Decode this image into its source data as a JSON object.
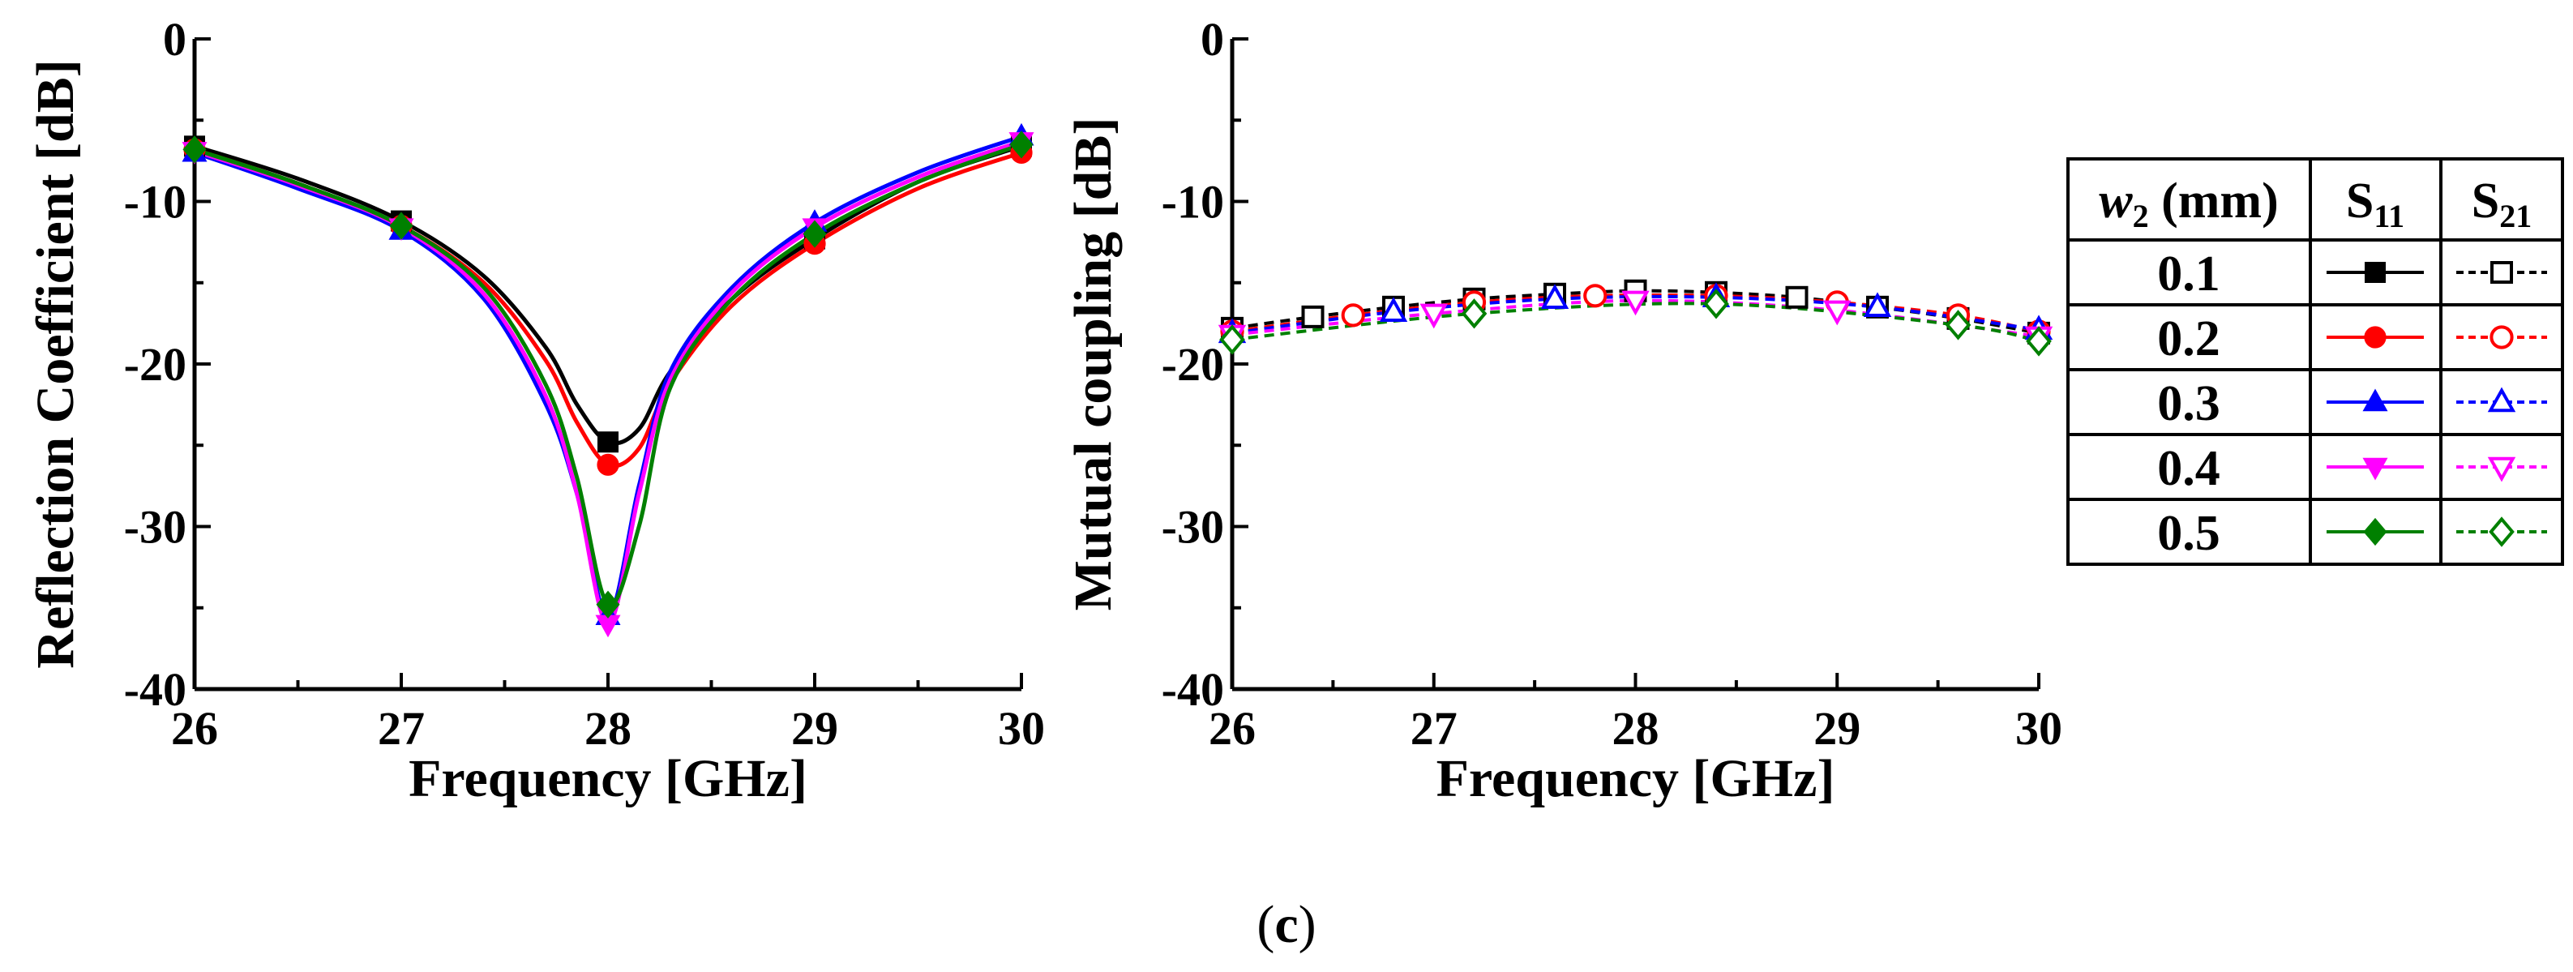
{
  "caption": {
    "open": "(",
    "letter": "c",
    "close": ")"
  },
  "colors": [
    "#000000",
    "#ff0000",
    "#0000ff",
    "#ff00ff",
    "#008000"
  ],
  "legend": {
    "header_param_italic": "w",
    "header_param_sub": "2",
    "header_param_unit": " (mm)",
    "header_s11_main": "S",
    "header_s11_sub": "11",
    "header_s21_main": "S",
    "header_s21_sub": "21",
    "rows": [
      "0.1",
      "0.2",
      "0.3",
      "0.4",
      "0.5"
    ],
    "markers": [
      "square",
      "circle",
      "triangle-up",
      "triangle-down",
      "diamond"
    ]
  },
  "chart_data": [
    {
      "type": "line",
      "title": "",
      "xlabel": "Frequency [GHz]",
      "ylabel": "Reflection Coefficient [dB]",
      "xlim": [
        26,
        30
      ],
      "ylim": [
        -40,
        0
      ],
      "xticks": [
        26,
        27,
        28,
        29,
        30
      ],
      "yticks": [
        0,
        -10,
        -20,
        -30,
        -40
      ],
      "x": [
        26,
        26.5,
        27,
        27.4,
        27.7,
        27.85,
        28.0,
        28.15,
        28.3,
        28.6,
        29,
        29.5,
        30
      ],
      "marker_x": [
        26,
        27,
        28,
        29,
        30
      ],
      "series": [
        {
          "name": "0.1",
          "values": [
            -6.6,
            -8.6,
            -11.2,
            -14.6,
            -19.0,
            -22.5,
            -24.8,
            -24.0,
            -20.5,
            -16.0,
            -12.3,
            -8.8,
            -6.6
          ]
        },
        {
          "name": "0.2",
          "values": [
            -6.8,
            -8.9,
            -11.5,
            -15.0,
            -19.8,
            -23.6,
            -26.2,
            -25.2,
            -21.2,
            -16.4,
            -12.6,
            -9.2,
            -7.0
          ]
        },
        {
          "name": "0.3",
          "values": [
            -7.0,
            -9.2,
            -11.8,
            -16.0,
            -22.5,
            -28.0,
            -35.5,
            -27.5,
            -20.5,
            -15.3,
            -11.3,
            -8.2,
            -6.0
          ]
        },
        {
          "name": "0.4",
          "values": [
            -6.9,
            -9.0,
            -11.6,
            -15.7,
            -22.0,
            -28.0,
            -36.0,
            -28.0,
            -21.0,
            -15.6,
            -11.6,
            -8.5,
            -6.3
          ]
        },
        {
          "name": "0.5",
          "values": [
            -6.8,
            -8.9,
            -11.5,
            -15.3,
            -21.3,
            -27.0,
            -34.8,
            -30.0,
            -21.5,
            -16.0,
            -12.0,
            -8.8,
            -6.5
          ]
        }
      ]
    },
    {
      "type": "line",
      "title": "",
      "xlabel": "Frequency [GHz]",
      "ylabel": "Mutual coupling [dB]",
      "xlim": [
        26,
        30
      ],
      "ylim": [
        -40,
        0
      ],
      "xticks": [
        26,
        27,
        28,
        29,
        30
      ],
      "yticks": [
        0,
        -10,
        -20,
        -30,
        -40
      ],
      "series": [
        {
          "name": "0.1",
          "x": [
            26,
            26.4,
            26.8,
            27.2,
            27.6,
            28.0,
            28.4,
            28.8,
            29.2,
            29.6,
            30
          ],
          "values": [
            -17.8,
            -17.1,
            -16.5,
            -16.0,
            -15.7,
            -15.5,
            -15.6,
            -15.9,
            -16.5,
            -17.2,
            -18.1
          ]
        },
        {
          "name": "0.2",
          "x": [
            26,
            26.6,
            27.2,
            27.8,
            28.4,
            29.0,
            29.6,
            30
          ],
          "values": [
            -18.0,
            -17.0,
            -16.2,
            -15.8,
            -15.8,
            -16.2,
            -17.0,
            -18.0
          ]
        },
        {
          "name": "0.3",
          "x": [
            26,
            26.8,
            27.6,
            28.4,
            29.2,
            30
          ],
          "values": [
            -18.1,
            -16.8,
            -16.0,
            -15.9,
            -16.5,
            -17.9
          ]
        },
        {
          "name": "0.4",
          "x": [
            26,
            27.0,
            28.0,
            29.0,
            30
          ],
          "values": [
            -18.2,
            -16.9,
            -16.1,
            -16.7,
            -18.3
          ]
        },
        {
          "name": "0.5",
          "x": [
            26,
            27.2,
            28.4,
            29.6,
            30
          ],
          "values": [
            -18.5,
            -16.9,
            -16.3,
            -17.6,
            -18.6
          ]
        }
      ]
    }
  ]
}
